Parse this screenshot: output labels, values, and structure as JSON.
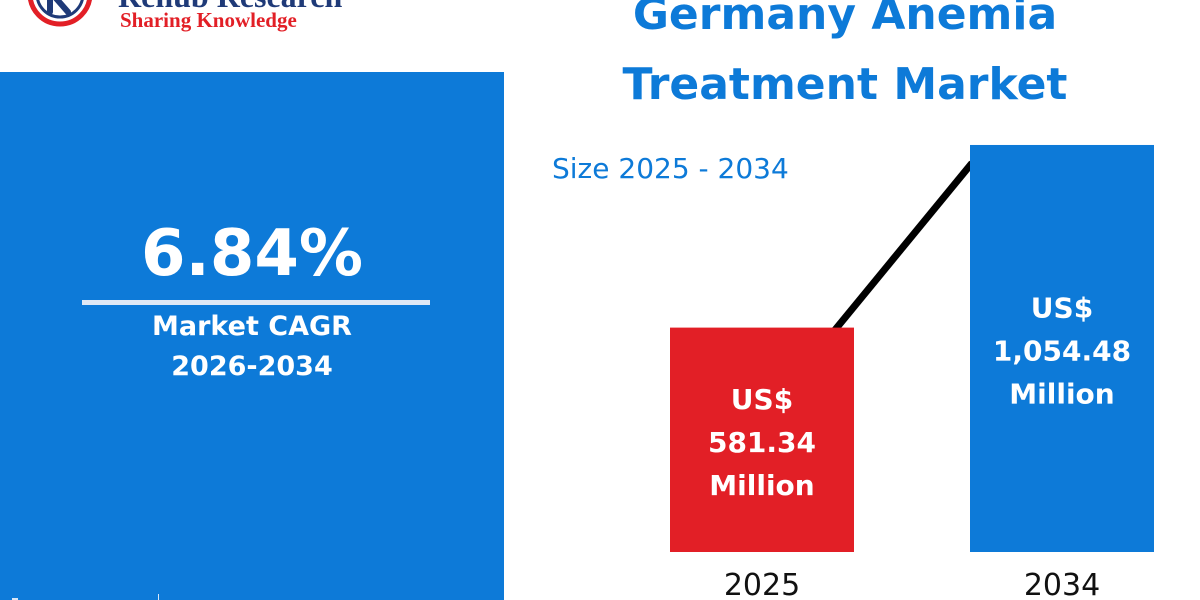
{
  "logo": {
    "brand": "Renub Research",
    "tagline": "Sharing Knowledge",
    "brand_color": "#1f3a78",
    "tagline_color": "#e21f26"
  },
  "cagr": {
    "value": "6.84%",
    "label": "Market CAGR",
    "period": "2026-2034",
    "panel_color": "#0d7ad8"
  },
  "title": "Germany Anemia Treatment Market",
  "subtitle": "Size 2025 - 2034",
  "chart_data": {
    "type": "bar",
    "categories": [
      "2025",
      "2034"
    ],
    "values": [
      581.34,
      1054.48
    ],
    "bar_labels": [
      [
        "US$",
        "581.34",
        "Million"
      ],
      [
        "US$",
        "1,054.48",
        "Million"
      ]
    ],
    "colors": [
      "#e21f26",
      "#0d7ad8"
    ],
    "trend_line": true,
    "title": "Size 2025 - 2034",
    "xlabel": "",
    "ylabel": ""
  }
}
